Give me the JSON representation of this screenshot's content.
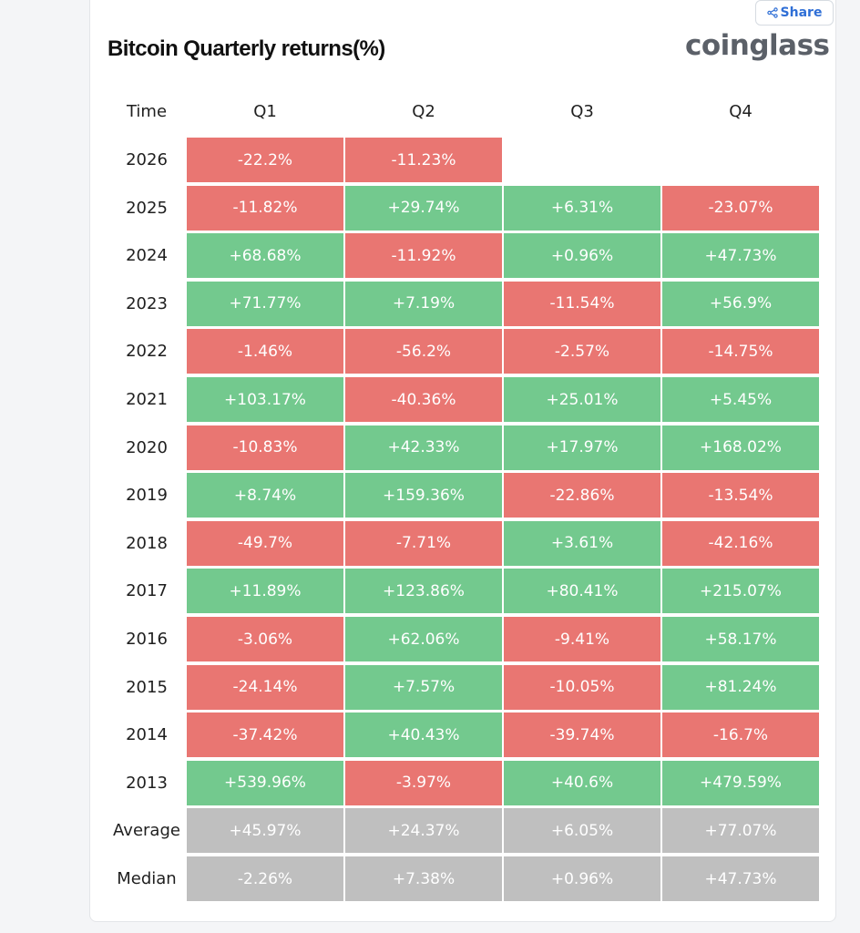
{
  "share_label": "Share",
  "title": "Bitcoin Quarterly returns(%)",
  "logo": "coinglass",
  "colors": {
    "positive": "#73c98e",
    "negative": "#e97672",
    "summary": "#bfbfbf"
  },
  "chart_data": {
    "type": "table",
    "title": "Bitcoin Quarterly returns(%)",
    "row_header": "Time",
    "columns": [
      "Q1",
      "Q2",
      "Q3",
      "Q4"
    ],
    "rows": [
      {
        "label": "2026",
        "kind": "year",
        "values": [
          "-22.2%",
          "-11.23%",
          "",
          ""
        ]
      },
      {
        "label": "2025",
        "kind": "year",
        "values": [
          "-11.82%",
          "+29.74%",
          "+6.31%",
          "-23.07%"
        ]
      },
      {
        "label": "2024",
        "kind": "year",
        "values": [
          "+68.68%",
          "-11.92%",
          "+0.96%",
          "+47.73%"
        ]
      },
      {
        "label": "2023",
        "kind": "year",
        "values": [
          "+71.77%",
          "+7.19%",
          "-11.54%",
          "+56.9%"
        ]
      },
      {
        "label": "2022",
        "kind": "year",
        "values": [
          "-1.46%",
          "-56.2%",
          "-2.57%",
          "-14.75%"
        ]
      },
      {
        "label": "2021",
        "kind": "year",
        "values": [
          "+103.17%",
          "-40.36%",
          "+25.01%",
          "+5.45%"
        ]
      },
      {
        "label": "2020",
        "kind": "year",
        "values": [
          "-10.83%",
          "+42.33%",
          "+17.97%",
          "+168.02%"
        ]
      },
      {
        "label": "2019",
        "kind": "year",
        "values": [
          "+8.74%",
          "+159.36%",
          "-22.86%",
          "-13.54%"
        ]
      },
      {
        "label": "2018",
        "kind": "year",
        "values": [
          "-49.7%",
          "-7.71%",
          "+3.61%",
          "-42.16%"
        ]
      },
      {
        "label": "2017",
        "kind": "year",
        "values": [
          "+11.89%",
          "+123.86%",
          "+80.41%",
          "+215.07%"
        ]
      },
      {
        "label": "2016",
        "kind": "year",
        "values": [
          "-3.06%",
          "+62.06%",
          "-9.41%",
          "+58.17%"
        ]
      },
      {
        "label": "2015",
        "kind": "year",
        "values": [
          "-24.14%",
          "+7.57%",
          "-10.05%",
          "+81.24%"
        ]
      },
      {
        "label": "2014",
        "kind": "year",
        "values": [
          "-37.42%",
          "+40.43%",
          "-39.74%",
          "-16.7%"
        ]
      },
      {
        "label": "2013",
        "kind": "year",
        "values": [
          "+539.96%",
          "-3.97%",
          "+40.6%",
          "+479.59%"
        ]
      },
      {
        "label": "Average",
        "kind": "summary",
        "values": [
          "+45.97%",
          "+24.37%",
          "+6.05%",
          "+77.07%"
        ]
      },
      {
        "label": "Median",
        "kind": "summary",
        "values": [
          "-2.26%",
          "+7.38%",
          "+0.96%",
          "+47.73%"
        ]
      }
    ]
  }
}
